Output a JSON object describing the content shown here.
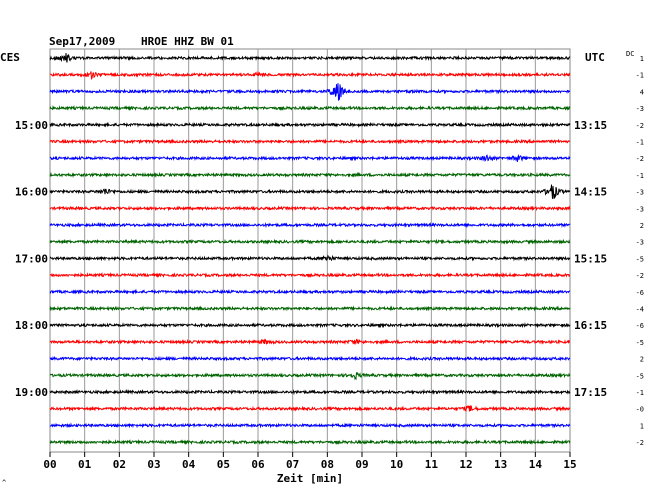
{
  "header": {
    "date": "Sep17,2009",
    "station": "HROE HHZ BW 01",
    "left_zone": "CES",
    "right_zone": "UTC",
    "dc_label": "DC"
  },
  "corner_mark": "^",
  "chart_data": {
    "type": "line",
    "title": "HROE HHZ BW 01",
    "xlabel": "Zeit [min]",
    "ylabel": "",
    "xlim": [
      0,
      15
    ],
    "x_ticks": [
      "00",
      "01",
      "02",
      "03",
      "04",
      "05",
      "06",
      "07",
      "08",
      "09",
      "10",
      "11",
      "12",
      "13",
      "14",
      "15"
    ],
    "grid": true,
    "trace_count": 24,
    "trace_colors": [
      "#000000",
      "#ff0000",
      "#0000ff",
      "#006400"
    ],
    "left_time_labels": [
      {
        "trace": 4,
        "text": "15:00"
      },
      {
        "trace": 8,
        "text": "16:00"
      },
      {
        "trace": 12,
        "text": "17:00"
      },
      {
        "trace": 16,
        "text": "18:00"
      },
      {
        "trace": 20,
        "text": "19:00"
      }
    ],
    "right_time_labels": [
      {
        "trace": 4,
        "text": "13:15"
      },
      {
        "trace": 8,
        "text": "14:15"
      },
      {
        "trace": 12,
        "text": "15:15"
      },
      {
        "trace": 16,
        "text": "16:15"
      },
      {
        "trace": 20,
        "text": "17:15"
      }
    ],
    "dc_offsets": [
      "1",
      "-1",
      "4",
      "-3",
      "-2",
      "-1",
      "-2",
      "-1",
      "-3",
      "-3",
      "2",
      "-3",
      "-5",
      "-2",
      "-6",
      "-4",
      "-6",
      "-5",
      "2",
      "-5",
      "-1",
      "-0",
      "1",
      "-2"
    ],
    "events": [
      {
        "trace": 0,
        "minute": 0.45,
        "amp": 5
      },
      {
        "trace": 1,
        "minute": 1.2,
        "amp": 3
      },
      {
        "trace": 1,
        "minute": 6.0,
        "amp": 2
      },
      {
        "trace": 2,
        "minute": 8.3,
        "amp": 12
      },
      {
        "trace": 6,
        "minute": 12.6,
        "amp": 3
      },
      {
        "trace": 6,
        "minute": 13.5,
        "amp": 3
      },
      {
        "trace": 8,
        "minute": 1.6,
        "amp": 3
      },
      {
        "trace": 8,
        "minute": 14.5,
        "amp": 9
      },
      {
        "trace": 12,
        "minute": 8.0,
        "amp": 3
      },
      {
        "trace": 17,
        "minute": 6.2,
        "amp": 2
      },
      {
        "trace": 17,
        "minute": 8.8,
        "amp": 2
      },
      {
        "trace": 19,
        "minute": 8.8,
        "amp": 3
      },
      {
        "trace": 21,
        "minute": 12.1,
        "amp": 3
      }
    ]
  }
}
